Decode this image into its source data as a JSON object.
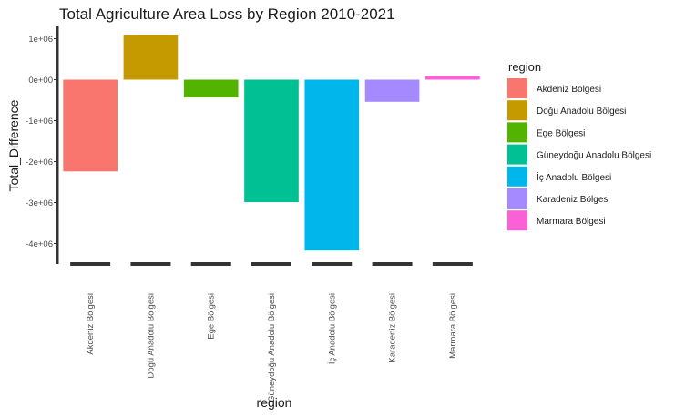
{
  "chart_data": {
    "type": "bar",
    "title": "Total Agriculture Area Loss by Region 2010-2021",
    "xlabel": "region",
    "ylabel": "Total_Difference",
    "categories": [
      "Akdeniz Bölgesi",
      "Doğu Anadolu Bölgesi",
      "Ege Bölgesi",
      "Güneydoğu Anadolu Bölgesi",
      "İç Anadolu Bölgesi",
      "Karadeniz Bölgesi",
      "Marmara Bölgesi"
    ],
    "values": [
      -2240000,
      1100000,
      -430000,
      -2990000,
      -4170000,
      -540000,
      90000
    ],
    "colors": [
      "#F8766D",
      "#C49A00",
      "#53B400",
      "#00C094",
      "#00B6EB",
      "#A58AFF",
      "#FB61D7"
    ],
    "ylim": [
      -4500000,
      1300000
    ],
    "yticks": [
      1000000,
      0,
      -1000000,
      -2000000,
      -3000000,
      -4000000
    ],
    "ytick_labels": [
      "1e+06",
      "0e+00",
      "-1e+06",
      "-2e+06",
      "-3e+06",
      "-4e+06"
    ],
    "grid": false,
    "legend": {
      "title": "region",
      "position": "right",
      "entries": [
        "Akdeniz Bölgesi",
        "Doğu Anadolu Bölgesi",
        "Ege Bölgesi",
        "Güneydoğu Anadolu Bölgesi",
        "İç Anadolu Bölgesi",
        "Karadeniz Bölgesi",
        "Marmara Bölgesi"
      ]
    }
  }
}
